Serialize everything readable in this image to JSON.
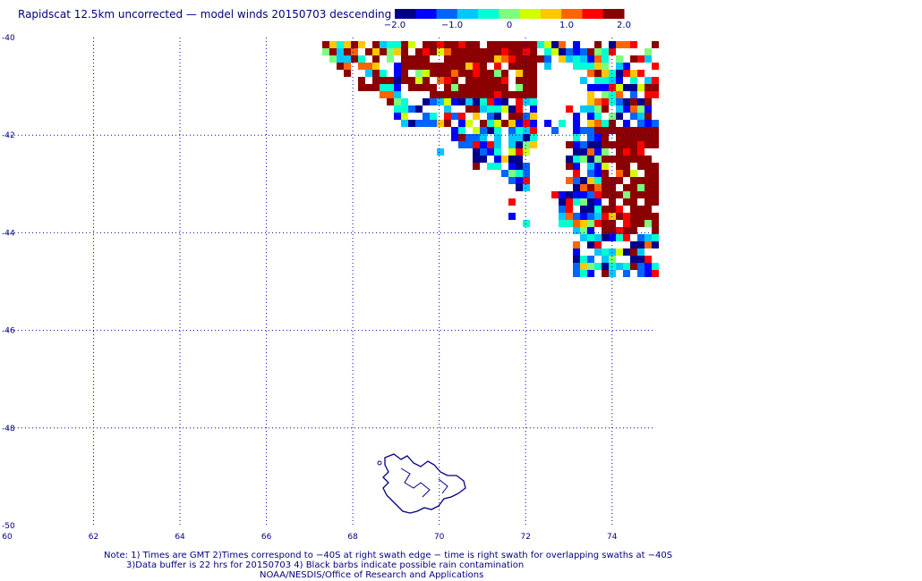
{
  "title": "Rapidscat 12.5km uncorrected — model winds 20150703 descending",
  "colorbar": {
    "tick_labels": [
      "−2.0",
      "−1.0",
      "0",
      "1.0",
      "2.0"
    ],
    "min": -2.0,
    "max": 2.0,
    "colors": [
      "#00008b",
      "#0000ff",
      "#0064ff",
      "#00c8ff",
      "#00ffd2",
      "#7dff7d",
      "#d2ff00",
      "#ffc800",
      "#ff6400",
      "#ff0000",
      "#8b0000"
    ]
  },
  "map": {
    "lon_range": [
      60,
      75
    ],
    "lat_range": [
      -50,
      -40
    ],
    "lon_ticks": [
      "60",
      "62",
      "64",
      "66",
      "68",
      "70",
      "72",
      "74"
    ],
    "lat_ticks": [
      "-40",
      "-42",
      "-44",
      "-46",
      "-48",
      "-50"
    ],
    "grid_color": "#0000b0",
    "coast_color": "#000080"
  },
  "notes": {
    "line1": "Note: 1) Times are GMT 2)Times correspond to −40S at right swath edge − time is right swath for overlapping swaths at −40S",
    "line2": "3)Data buffer is 22 hrs for 20150703 4) Black barbs indicate possible rain contamination",
    "line3": "NOAA/NESDIS/Office of Research and Applications"
  }
}
